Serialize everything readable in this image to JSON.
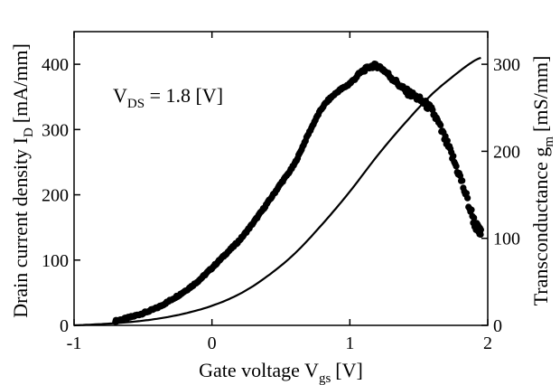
{
  "chart_data": {
    "type": "scatter",
    "xlabel": "Gate voltage V",
    "xlabel_sub": "gs",
    "xlabel_unit": "[V]",
    "ylabel_left": "Drain current density I",
    "ylabel_left_sub": "D",
    "ylabel_left_unit": "[mA/mm]",
    "ylabel_right": "Transconductance g",
    "ylabel_right_sub": "m",
    "ylabel_right_unit": "[mS/mm]",
    "annotation": {
      "main": "V",
      "sub": "DS",
      "rest": " = 1.8 [V]"
    },
    "xlim": [
      -1,
      2
    ],
    "ylim_left": [
      0,
      450
    ],
    "ylim_right": [
      0,
      337.5
    ],
    "x_ticks": [
      -1,
      0,
      1,
      2
    ],
    "x_tick_labels": [
      "-1",
      "0",
      "1",
      "2"
    ],
    "y_left_ticks": [
      0,
      100,
      200,
      300,
      400
    ],
    "y_left_tick_labels": [
      "0",
      "100",
      "200",
      "300",
      "400"
    ],
    "y_right_ticks": [
      0,
      100,
      200,
      300
    ],
    "y_right_tick_labels": [
      "0",
      "100",
      "200",
      "300"
    ],
    "series": [
      {
        "axis": "left",
        "style": "line",
        "x": [
          -1.0,
          -0.8,
          -0.6,
          -0.4,
          -0.2,
          0.0,
          0.2,
          0.4,
          0.6,
          0.8,
          1.0,
          1.2,
          1.4,
          1.6,
          1.8,
          1.9,
          1.95
        ],
        "values": [
          0,
          2,
          5,
          10,
          18,
          30,
          48,
          75,
          110,
          155,
          205,
          260,
          310,
          355,
          390,
          405,
          410
        ]
      },
      {
        "axis": "right",
        "style": "markers",
        "x": [
          -0.7,
          -0.6,
          -0.5,
          -0.4,
          -0.3,
          -0.2,
          -0.1,
          0.0,
          0.1,
          0.2,
          0.3,
          0.4,
          0.5,
          0.6,
          0.7,
          0.8,
          0.9,
          1.0,
          1.1,
          1.2,
          1.3,
          1.4,
          1.5,
          1.6,
          1.7,
          1.8,
          1.9,
          1.95
        ],
        "values": [
          5,
          9,
          14,
          20,
          29,
          39,
          51,
          66,
          82,
          98,
          118,
          140,
          163,
          186,
          220,
          250,
          267,
          278,
          293,
          298,
          285,
          270,
          260,
          245,
          210,
          170,
          120,
          105
        ]
      }
    ]
  }
}
